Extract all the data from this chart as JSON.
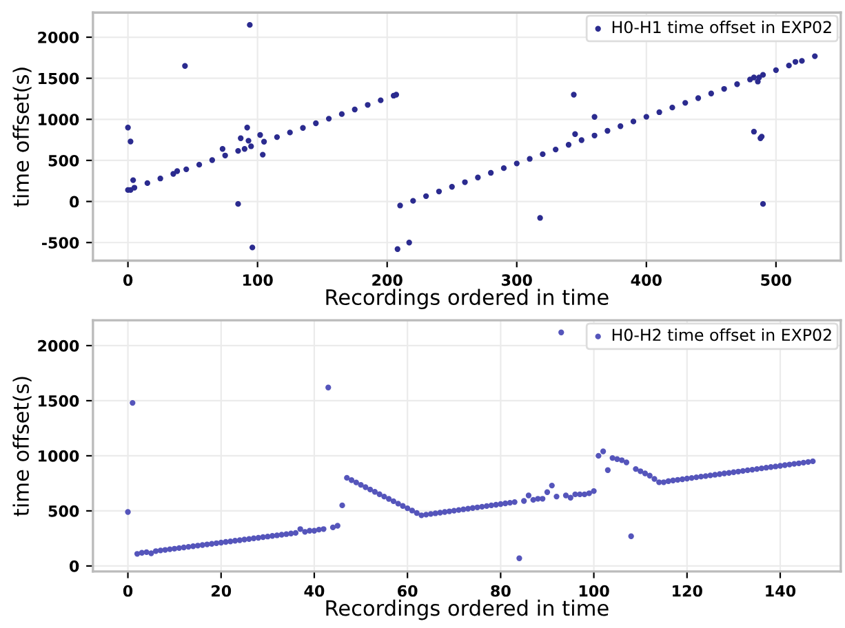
{
  "chart_data": [
    {
      "type": "scatter",
      "xlabel": "Recordings ordered in time",
      "ylabel": "time offset(s)",
      "xlim": [
        -27,
        550
      ],
      "ylim": [
        -720,
        2300
      ],
      "xticks": [
        0,
        100,
        200,
        300,
        400,
        500
      ],
      "yticks": [
        -500,
        0,
        500,
        1000,
        1500,
        2000
      ],
      "grid": true,
      "legend": "top right",
      "marker": "circle",
      "series": [
        {
          "name": "H0-H1 time offset in EXP02",
          "color": "#2b2b8f",
          "x": [
            0,
            2,
            5,
            15,
            25,
            35,
            45,
            55,
            65,
            75,
            85,
            95,
            105,
            115,
            125,
            135,
            145,
            155,
            165,
            175,
            185,
            195,
            205,
            207,
            210,
            220,
            230,
            240,
            250,
            260,
            270,
            280,
            290,
            300,
            310,
            320,
            330,
            340,
            350,
            360,
            370,
            380,
            390,
            400,
            410,
            420,
            430,
            440,
            450,
            460,
            470,
            480,
            490,
            500,
            510,
            520,
            530,
            0,
            2,
            4,
            44,
            38,
            73,
            85,
            87,
            92,
            94,
            96,
            102,
            104,
            90,
            93,
            208,
            217,
            318,
            344,
            345,
            360,
            483,
            486,
            488,
            489,
            490,
            483,
            487,
            515
          ],
          "values": [
            140,
            140,
            168,
            224,
            280,
            336,
            392,
            448,
            504,
            560,
            616,
            672,
            728,
            784,
            840,
            896,
            952,
            1008,
            1064,
            1120,
            1176,
            1232,
            1288,
            1300,
            -49,
            8,
            65,
            122,
            179,
            235,
            292,
            349,
            406,
            463,
            519,
            576,
            633,
            690,
            747,
            803,
            860,
            917,
            974,
            1031,
            1087,
            1144,
            1201,
            1258,
            1315,
            1371,
            1428,
            1485,
            1542,
            1599,
            1655,
            1712,
            1769,
            900,
            730,
            260,
            1650,
            370,
            640,
            -30,
            770,
            900,
            2150,
            -560,
            810,
            570,
            640,
            740,
            -580,
            -500,
            -200,
            1300,
            820,
            1030,
            850,
            1460,
            770,
            790,
            -30,
            1510,
            1510,
            1700
          ]
        }
      ]
    },
    {
      "type": "scatter",
      "xlabel": "Recordings ordered in time",
      "ylabel": "time offset(s)",
      "xlim": [
        -7.5,
        153
      ],
      "ylim": [
        -50,
        2230
      ],
      "xticks": [
        0,
        20,
        40,
        60,
        80,
        100,
        120,
        140
      ],
      "yticks": [
        0,
        500,
        1000,
        1500,
        2000
      ],
      "grid": true,
      "legend": "top right",
      "marker": "circle",
      "series": [
        {
          "name": "H0-H2 time offset in EXP02",
          "color": "#5555bb",
          "x": [
            0,
            1,
            2,
            3,
            4,
            5,
            6,
            7,
            8,
            9,
            10,
            11,
            12,
            13,
            14,
            15,
            16,
            17,
            18,
            19,
            20,
            21,
            22,
            23,
            24,
            25,
            26,
            27,
            28,
            29,
            30,
            31,
            32,
            33,
            34,
            35,
            36,
            37,
            38,
            39,
            40,
            41,
            42,
            43,
            44,
            45,
            46,
            47,
            48,
            49,
            50,
            51,
            52,
            53,
            54,
            55,
            56,
            57,
            58,
            59,
            60,
            61,
            62,
            63,
            64,
            65,
            66,
            67,
            68,
            69,
            70,
            71,
            72,
            73,
            74,
            75,
            76,
            77,
            78,
            79,
            80,
            81,
            82,
            83,
            84,
            85,
            86,
            87,
            88,
            89,
            90,
            91,
            92,
            93,
            94,
            95,
            96,
            97,
            98,
            99,
            100,
            101,
            102,
            103,
            104,
            105,
            106,
            107,
            108,
            109,
            110,
            111,
            112,
            113,
            114,
            115,
            116,
            117,
            118,
            119,
            120,
            121,
            122,
            123,
            124,
            125,
            126,
            127,
            128,
            129,
            130,
            131,
            132,
            133,
            134,
            135,
            136,
            137,
            138,
            139,
            140,
            141,
            142,
            143,
            144,
            145,
            146,
            147
          ],
          "values": [
            490,
            1480,
            110,
            120,
            125,
            115,
            135,
            141,
            146,
            152,
            157,
            163,
            168,
            174,
            179,
            185,
            190,
            196,
            201,
            207,
            212,
            218,
            223,
            229,
            234,
            240,
            245,
            251,
            256,
            262,
            267,
            273,
            278,
            284,
            289,
            295,
            300,
            335,
            310,
            320,
            320,
            330,
            335,
            1620,
            350,
            365,
            550,
            800,
            779,
            758,
            736,
            715,
            694,
            673,
            651,
            630,
            609,
            588,
            566,
            545,
            524,
            503,
            481,
            460,
            466,
            472,
            478,
            484,
            490,
            496,
            502,
            508,
            514,
            520,
            526,
            532,
            538,
            544,
            550,
            556,
            562,
            568,
            574,
            580,
            70,
            590,
            640,
            600,
            610,
            610,
            670,
            730,
            630,
            2120,
            640,
            620,
            650,
            650,
            650,
            660,
            680,
            1000,
            1040,
            870,
            980,
            970,
            960,
            940,
            270,
            880,
            860,
            840,
            820,
            790,
            760,
            760,
            770,
            776,
            782,
            787,
            793,
            799,
            805,
            811,
            816,
            822,
            828,
            834,
            840,
            845,
            851,
            857,
            863,
            869,
            874,
            880,
            886,
            892,
            898,
            903,
            909,
            915,
            921,
            927,
            932,
            938,
            944,
            950
          ]
        }
      ]
    }
  ]
}
